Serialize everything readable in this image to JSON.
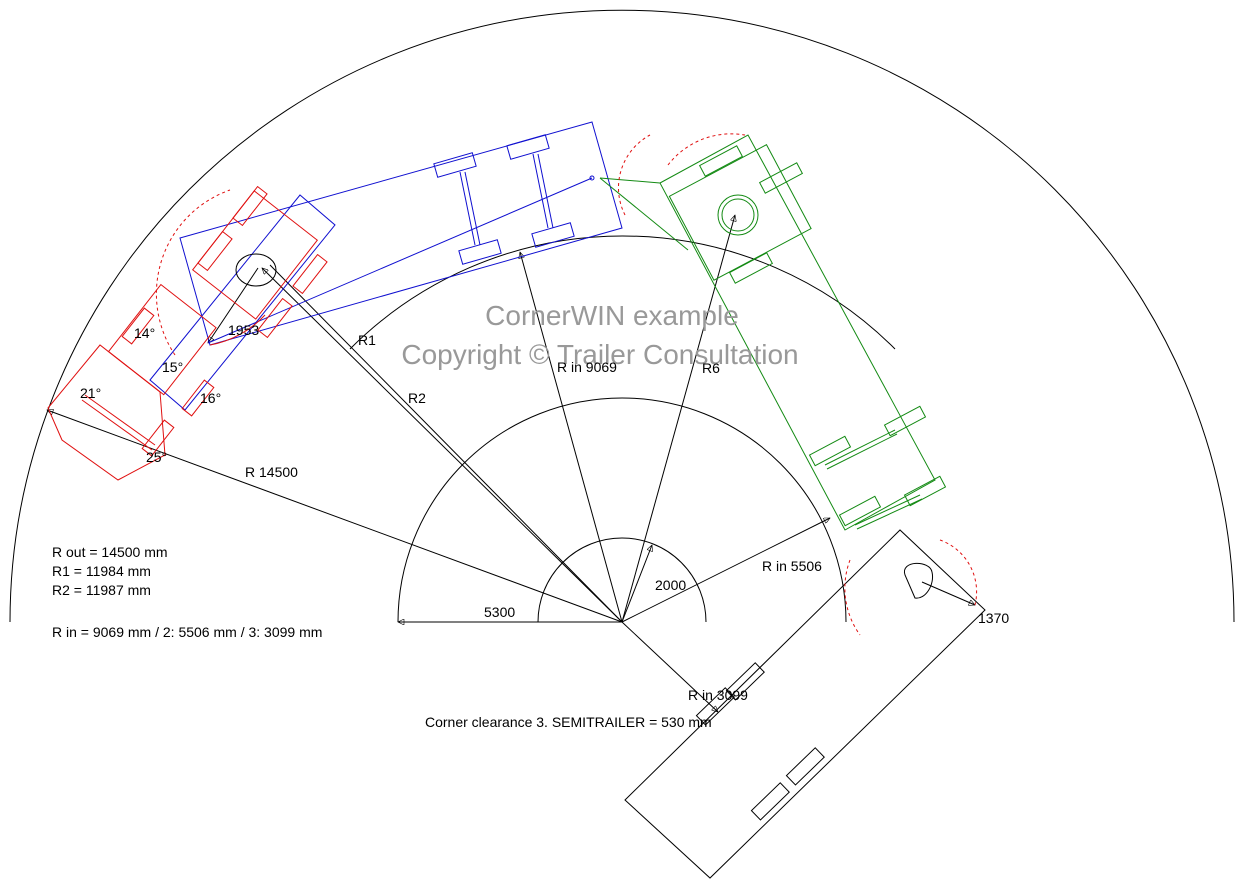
{
  "watermark": {
    "title": "CornerWIN example",
    "copyright": "Copyright © Trailer Consultation"
  },
  "summary": [
    "R out =  14500 mm",
    "R1 = 11984 mm",
    "R2 = 11987 mm",
    "R in  = 9069 mm  / 2: 5506 mm  / 3: 3099 mm",
    "Corner clearance 3. SEMITRAILER =  530 mm"
  ],
  "labels": [
    "R  14500",
    "5300",
    "2000",
    "R in  5506",
    "R in  9069",
    "R6",
    "R1",
    "R2",
    "1953",
    "14°",
    "15°",
    "16°",
    "21°",
    "25°",
    "1370",
    "R in  3099"
  ]
}
